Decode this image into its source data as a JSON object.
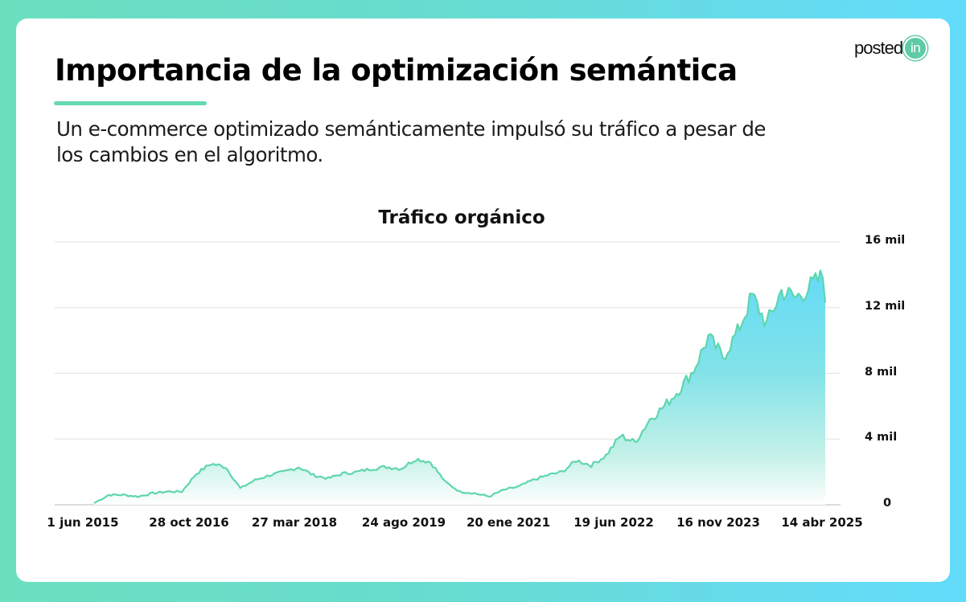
{
  "header": {
    "title": "Importancia de la optimización semántica",
    "subtitle": "Un e-commerce optimizado semánticamente impulsó su tráfico a pesar de los cambios en el algoritmo.",
    "accent_color": "#65d8b4"
  },
  "logo": {
    "text": "posted",
    "badge": "in",
    "badge_color": "#5fcba6"
  },
  "chart_data": {
    "type": "area",
    "title": "Tráfico orgánico",
    "xlabel": "",
    "ylabel": "",
    "ylim": [
      0,
      16000
    ],
    "yticks": [
      0,
      4000,
      8000,
      12000,
      16000
    ],
    "ytick_labels": [
      "0",
      "4 mil",
      "8 mil",
      "12 mil",
      "16 mil"
    ],
    "y_axis_position": "right",
    "xtick_labels": [
      "1 jun 2015",
      "28 oct 2016",
      "27 mar 2018",
      "24 ago 2019",
      "20 ene 2021",
      "19 jun 2022",
      "16 nov 2023",
      "14 abr 2025"
    ],
    "grid": true,
    "legend": null,
    "line_color": "#5ed6ae",
    "fill_gradient": [
      "#64d9f5",
      "#a9ecde",
      "#ffffff"
    ],
    "series": [
      {
        "name": "Tráfico orgánico",
        "x_approx": [
          "2015-06",
          "2015-07",
          "2015-09",
          "2015-12",
          "2016-03",
          "2016-06",
          "2016-09",
          "2016-10",
          "2016-11",
          "2017-01",
          "2017-02",
          "2017-04",
          "2017-07",
          "2017-10",
          "2017-12",
          "2018-02",
          "2018-05",
          "2018-08",
          "2018-11",
          "2019-01",
          "2019-03",
          "2019-05",
          "2019-07",
          "2019-09",
          "2019-11",
          "2020-01",
          "2020-04",
          "2020-07",
          "2020-10",
          "2021-01",
          "2021-04",
          "2021-07",
          "2021-10",
          "2022-01",
          "2022-04",
          "2022-06",
          "2022-09",
          "2022-12",
          "2023-03",
          "2023-06",
          "2023-09",
          "2023-11",
          "2024-01",
          "2024-03",
          "2024-05",
          "2024-07",
          "2024-09",
          "2024-11",
          "2025-01",
          "2025-03",
          "2025-05"
        ],
        "values": [
          100,
          600,
          600,
          500,
          700,
          800,
          800,
          1900,
          2500,
          2300,
          1000,
          1500,
          1800,
          2000,
          2300,
          1800,
          1600,
          1900,
          2000,
          2200,
          2300,
          2200,
          2800,
          2600,
          1400,
          800,
          700,
          500,
          900,
          1100,
          1500,
          1800,
          2000,
          2700,
          2400,
          3000,
          4200,
          3800,
          5200,
          6000,
          7000,
          8200,
          10200,
          9000,
          10500,
          12700,
          11000,
          13000,
          12600,
          13300,
          14000
        ]
      }
    ]
  }
}
